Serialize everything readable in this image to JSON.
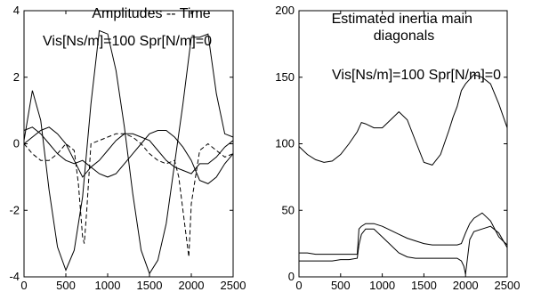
{
  "chart_data": [
    {
      "type": "line",
      "title": "Amplitudes -- Time",
      "annotation": "Vis[Ns/m]=100 Spr[N/m]=0",
      "xlabel": "",
      "ylabel": "",
      "xlim": [
        0,
        2500
      ],
      "ylim": [
        -4,
        4
      ],
      "xticks": [
        0,
        500,
        1000,
        1500,
        2000,
        2500
      ],
      "yticks": [
        4,
        2,
        0,
        -2,
        -4
      ],
      "series": [
        {
          "style": "solid",
          "x": [
            0,
            100,
            200,
            300,
            400,
            500,
            600,
            700,
            800,
            900,
            1000,
            1100,
            1200,
            1300,
            1400,
            1500,
            1600,
            1700,
            1800,
            1900,
            2000,
            2100,
            2200,
            2300,
            2400,
            2500
          ],
          "y": [
            0.1,
            1.6,
            0.7,
            -1.4,
            -3.1,
            -3.8,
            -3.2,
            -1.6,
            1.2,
            3.4,
            3.3,
            2.2,
            0.5,
            -1.5,
            -3.2,
            -3.9,
            -3.5,
            -2.4,
            -0.6,
            1.2,
            3.2,
            3.2,
            3.3,
            1.5,
            0.3,
            0.2
          ]
        },
        {
          "style": "solid",
          "x": [
            0,
            100,
            200,
            300,
            400,
            500,
            600,
            700,
            800,
            900,
            1000,
            1100,
            1200,
            1300,
            1400,
            1500,
            1600,
            1700,
            1800,
            1900,
            2000,
            2100,
            2200,
            2300,
            2400,
            2500
          ],
          "y": [
            0.4,
            0.5,
            0.3,
            0.0,
            -0.3,
            -0.5,
            -0.6,
            -0.5,
            -0.7,
            -0.5,
            -0.2,
            0.1,
            0.3,
            0.3,
            0.2,
            0.1,
            -0.2,
            -0.5,
            -0.7,
            -0.8,
            -0.9,
            -0.6,
            -0.6,
            -0.4,
            -0.1,
            0.1
          ]
        },
        {
          "style": "solid",
          "x": [
            0,
            100,
            200,
            300,
            400,
            500,
            600,
            700,
            800,
            900,
            1000,
            1100,
            1200,
            1300,
            1400,
            1500,
            1600,
            1700,
            1800,
            1900,
            2000,
            2100,
            2200,
            2300,
            2400,
            2500
          ],
          "y": [
            0.0,
            0.2,
            0.4,
            0.5,
            0.3,
            0.0,
            -0.5,
            -1.0,
            -0.7,
            -0.9,
            -1.0,
            -0.9,
            -0.6,
            -0.3,
            0.0,
            0.3,
            0.4,
            0.4,
            0.2,
            -0.1,
            -0.5,
            -1.1,
            -1.2,
            -1.0,
            -0.6,
            -0.3
          ]
        },
        {
          "style": "dashed",
          "x": [
            0,
            100,
            200,
            300,
            400,
            500,
            600,
            650,
            700,
            720,
            750,
            800,
            900,
            1000,
            1100,
            1200,
            1300,
            1400,
            1500,
            1600,
            1700,
            1800,
            1850,
            1900,
            1950,
            1970,
            2000,
            2100,
            2200,
            2300,
            2400,
            2500
          ],
          "y": [
            0.0,
            -0.3,
            -0.5,
            -0.5,
            -0.3,
            0.0,
            -0.2,
            -1.2,
            -2.8,
            -3.0,
            -2.0,
            0.0,
            0.1,
            0.2,
            0.3,
            0.3,
            0.2,
            0.0,
            -0.3,
            -0.5,
            -0.6,
            -0.5,
            -1.0,
            -2.0,
            -3.0,
            -3.4,
            -1.8,
            -0.2,
            0.0,
            -0.2,
            -0.4,
            -0.3
          ]
        }
      ]
    },
    {
      "type": "line",
      "title": "Estimated inertia main diagonals",
      "annotation": "Vis[Ns/m]=100 Spr[N/m]=0",
      "xlabel": "",
      "ylabel": "",
      "xlim": [
        0,
        2500
      ],
      "ylim": [
        0,
        200
      ],
      "xticks": [
        0,
        500,
        1000,
        1500,
        2000,
        2500
      ],
      "yticks": [
        200,
        150,
        100,
        50,
        0
      ],
      "series": [
        {
          "style": "solid",
          "x": [
            0,
            100,
            200,
            300,
            400,
            500,
            600,
            700,
            750,
            800,
            900,
            1000,
            1100,
            1200,
            1300,
            1400,
            1500,
            1600,
            1700,
            1800,
            1850,
            1900,
            1950,
            2000,
            2100,
            2200,
            2300,
            2400,
            2500
          ],
          "y": [
            98,
            92,
            88,
            86,
            87,
            92,
            100,
            109,
            116,
            115,
            112,
            112,
            118,
            124,
            118,
            102,
            86,
            84,
            92,
            110,
            120,
            128,
            140,
            145,
            152,
            150,
            145,
            130,
            112
          ]
        },
        {
          "style": "solid",
          "x": [
            0,
            100,
            200,
            300,
            400,
            500,
            600,
            700,
            720,
            750,
            800,
            900,
            1000,
            1100,
            1200,
            1300,
            1400,
            1500,
            1600,
            1700,
            1800,
            1900,
            1950,
            2000,
            2050,
            2100,
            2200,
            2300,
            2400,
            2500
          ],
          "y": [
            18,
            18,
            17,
            17,
            17,
            17,
            17,
            17,
            36,
            38,
            40,
            40,
            38,
            35,
            32,
            29,
            27,
            25,
            24,
            24,
            24,
            24,
            25,
            33,
            40,
            44,
            48,
            42,
            30,
            24
          ]
        },
        {
          "style": "solid",
          "x": [
            0,
            100,
            200,
            300,
            400,
            500,
            600,
            700,
            720,
            750,
            800,
            900,
            1000,
            1100,
            1200,
            1300,
            1400,
            1500,
            1600,
            1700,
            1800,
            1900,
            1950,
            1980,
            2000,
            2050,
            2100,
            2200,
            2300,
            2400,
            2500
          ],
          "y": [
            12,
            12,
            12,
            12,
            12,
            13,
            13,
            14,
            24,
            32,
            36,
            36,
            30,
            24,
            18,
            15,
            14,
            14,
            14,
            14,
            14,
            14,
            12,
            8,
            2,
            28,
            34,
            36,
            38,
            33,
            22
          ]
        }
      ]
    }
  ]
}
